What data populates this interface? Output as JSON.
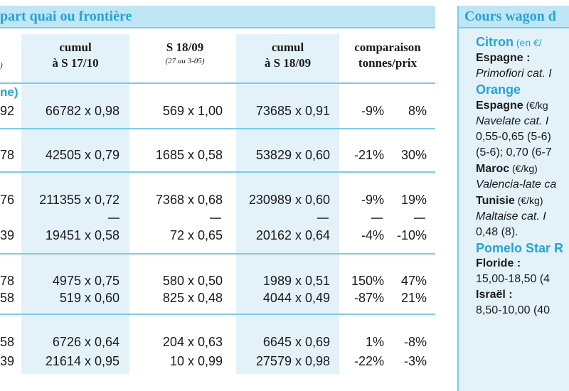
{
  "left_table": {
    "title": "part quai ou frontière",
    "columns": {
      "cum1": {
        "line1": "cumul",
        "line2": "à S 17/10"
      },
      "s18": {
        "line1": "S 18/09",
        "sub": "(27 au 3-05)"
      },
      "cum2": {
        "line1": "cumul",
        "line2": "à S 18/09"
      },
      "comp": {
        "line1": "comparaison",
        "line2": "tonnes/prix"
      }
    },
    "edge_header": ")",
    "section_fragment": "ne)",
    "dash": "—",
    "rows": [
      {
        "edge": "92",
        "cum1": "66782 x 0,98",
        "s18": "569 x 1,00",
        "cum2": "73685 x 0,91",
        "t": "-9%",
        "p": "8%"
      },
      {
        "edge": "78",
        "cum1": "42505 x 0,79",
        "s18": "1685 x 0,58",
        "cum2": "53829 x 0,60",
        "t": "-21%",
        "p": "30%"
      },
      {
        "edge": "76",
        "cum1": "211355 x 0,72",
        "s18": "7368 x 0,68",
        "cum2": "230989 x 0,60",
        "t": "-9%",
        "p": "19%"
      },
      {
        "edge": "39",
        "cum1": "19451 x 0,58",
        "s18": "72 x 0,65",
        "cum2": "20162 x 0,64",
        "t": "-4%",
        "p": "-10%"
      },
      {
        "edge": "78",
        "cum1": "4975 x 0,75",
        "s18": "580 x 0,50",
        "cum2": "1989 x 0,51",
        "t": "150%",
        "p": "47%"
      },
      {
        "edge": "58",
        "cum1": "519 x 0,60",
        "s18": "825 x 0,48",
        "cum2": "4044 x 0,49",
        "t": "-87%",
        "p": "21%"
      },
      {
        "edge": "58",
        "cum1": "6726 x 0,64",
        "s18": "204 x 0,63",
        "cum2": "6645 x 0,69",
        "t": "1%",
        "p": "-8%"
      },
      {
        "edge": "39",
        "cum1": "21614 x 0,95",
        "s18": "10 x 0,99",
        "cum2": "27579 x 0,98",
        "t": "-22%",
        "p": "-3%"
      }
    ]
  },
  "right_panel": {
    "title": "Cours wagon d",
    "lines": [
      {
        "kind": "fruit",
        "text": "Citron",
        "note": " (en €/"
      },
      {
        "kind": "country",
        "text": "Espagne :"
      },
      {
        "kind": "variety",
        "text": "Primofiori cat. I"
      },
      {
        "kind": "fruit",
        "text": "Orange"
      },
      {
        "kind": "country",
        "text": "Espagne",
        "note": " (€/kg"
      },
      {
        "kind": "variety",
        "text": "Navelate cat. I"
      },
      {
        "kind": "plain",
        "text": "0,55-0,65 (5-6)"
      },
      {
        "kind": "plain",
        "text": "(5-6); 0,70 (6-7"
      },
      {
        "kind": "country",
        "text": "Maroc",
        "note": " (€/kg)"
      },
      {
        "kind": "variety",
        "text": "Valencia-late ca"
      },
      {
        "kind": "country",
        "text": "Tunisie",
        "note": " (€/kg)"
      },
      {
        "kind": "variety",
        "text": "Maltaise cat. I"
      },
      {
        "kind": "plain",
        "text": "0,48 (8)."
      },
      {
        "kind": "fruit",
        "text": "Pomelo Star R"
      },
      {
        "kind": "country",
        "text": "Floride :"
      },
      {
        "kind": "plain",
        "text": "15,00-18,50 (4"
      },
      {
        "kind": "country",
        "text": "Israël :"
      },
      {
        "kind": "plain",
        "text": "8,50-10,00 (40"
      }
    ]
  }
}
